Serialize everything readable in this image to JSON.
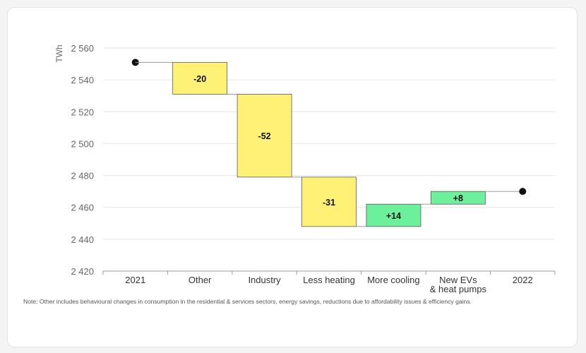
{
  "chart_data": {
    "type": "waterfall",
    "ylabel": "TWh",
    "ylim": [
      2420,
      2560
    ],
    "yticks": [
      2420,
      2440,
      2460,
      2480,
      2500,
      2520,
      2540,
      2560
    ],
    "ytick_labels": [
      "2 420",
      "2 440",
      "2 460",
      "2 480",
      "2 500",
      "2 520",
      "2 540",
      "2 560"
    ],
    "grid": true,
    "categories": [
      "2021",
      "Other",
      "Industry",
      "Less heating",
      "More cooling",
      "New EVs\n& heat pumps",
      "2022"
    ],
    "steps": [
      {
        "category": "2021",
        "kind": "total",
        "value": 2551
      },
      {
        "category": "Other",
        "kind": "delta",
        "value": -20,
        "label": "-20"
      },
      {
        "category": "Industry",
        "kind": "delta",
        "value": -52,
        "label": "-52"
      },
      {
        "category": "Less heating",
        "kind": "delta",
        "value": -31,
        "label": "-31"
      },
      {
        "category": "More cooling",
        "kind": "delta",
        "value": 14,
        "label": "+14"
      },
      {
        "category": "New EVs\n& heat pumps",
        "kind": "delta",
        "value": 8,
        "label": "+8"
      },
      {
        "category": "2022",
        "kind": "total",
        "value": 2470
      }
    ],
    "colors": {
      "decrease": "#fff176",
      "increase": "#6cf09c",
      "total_marker": "#111111"
    }
  },
  "note": "Note: Other includes behavioural changes in consumption in the residential & services sectors, energy savings, reductions due to affordability issues & efficiency gains."
}
